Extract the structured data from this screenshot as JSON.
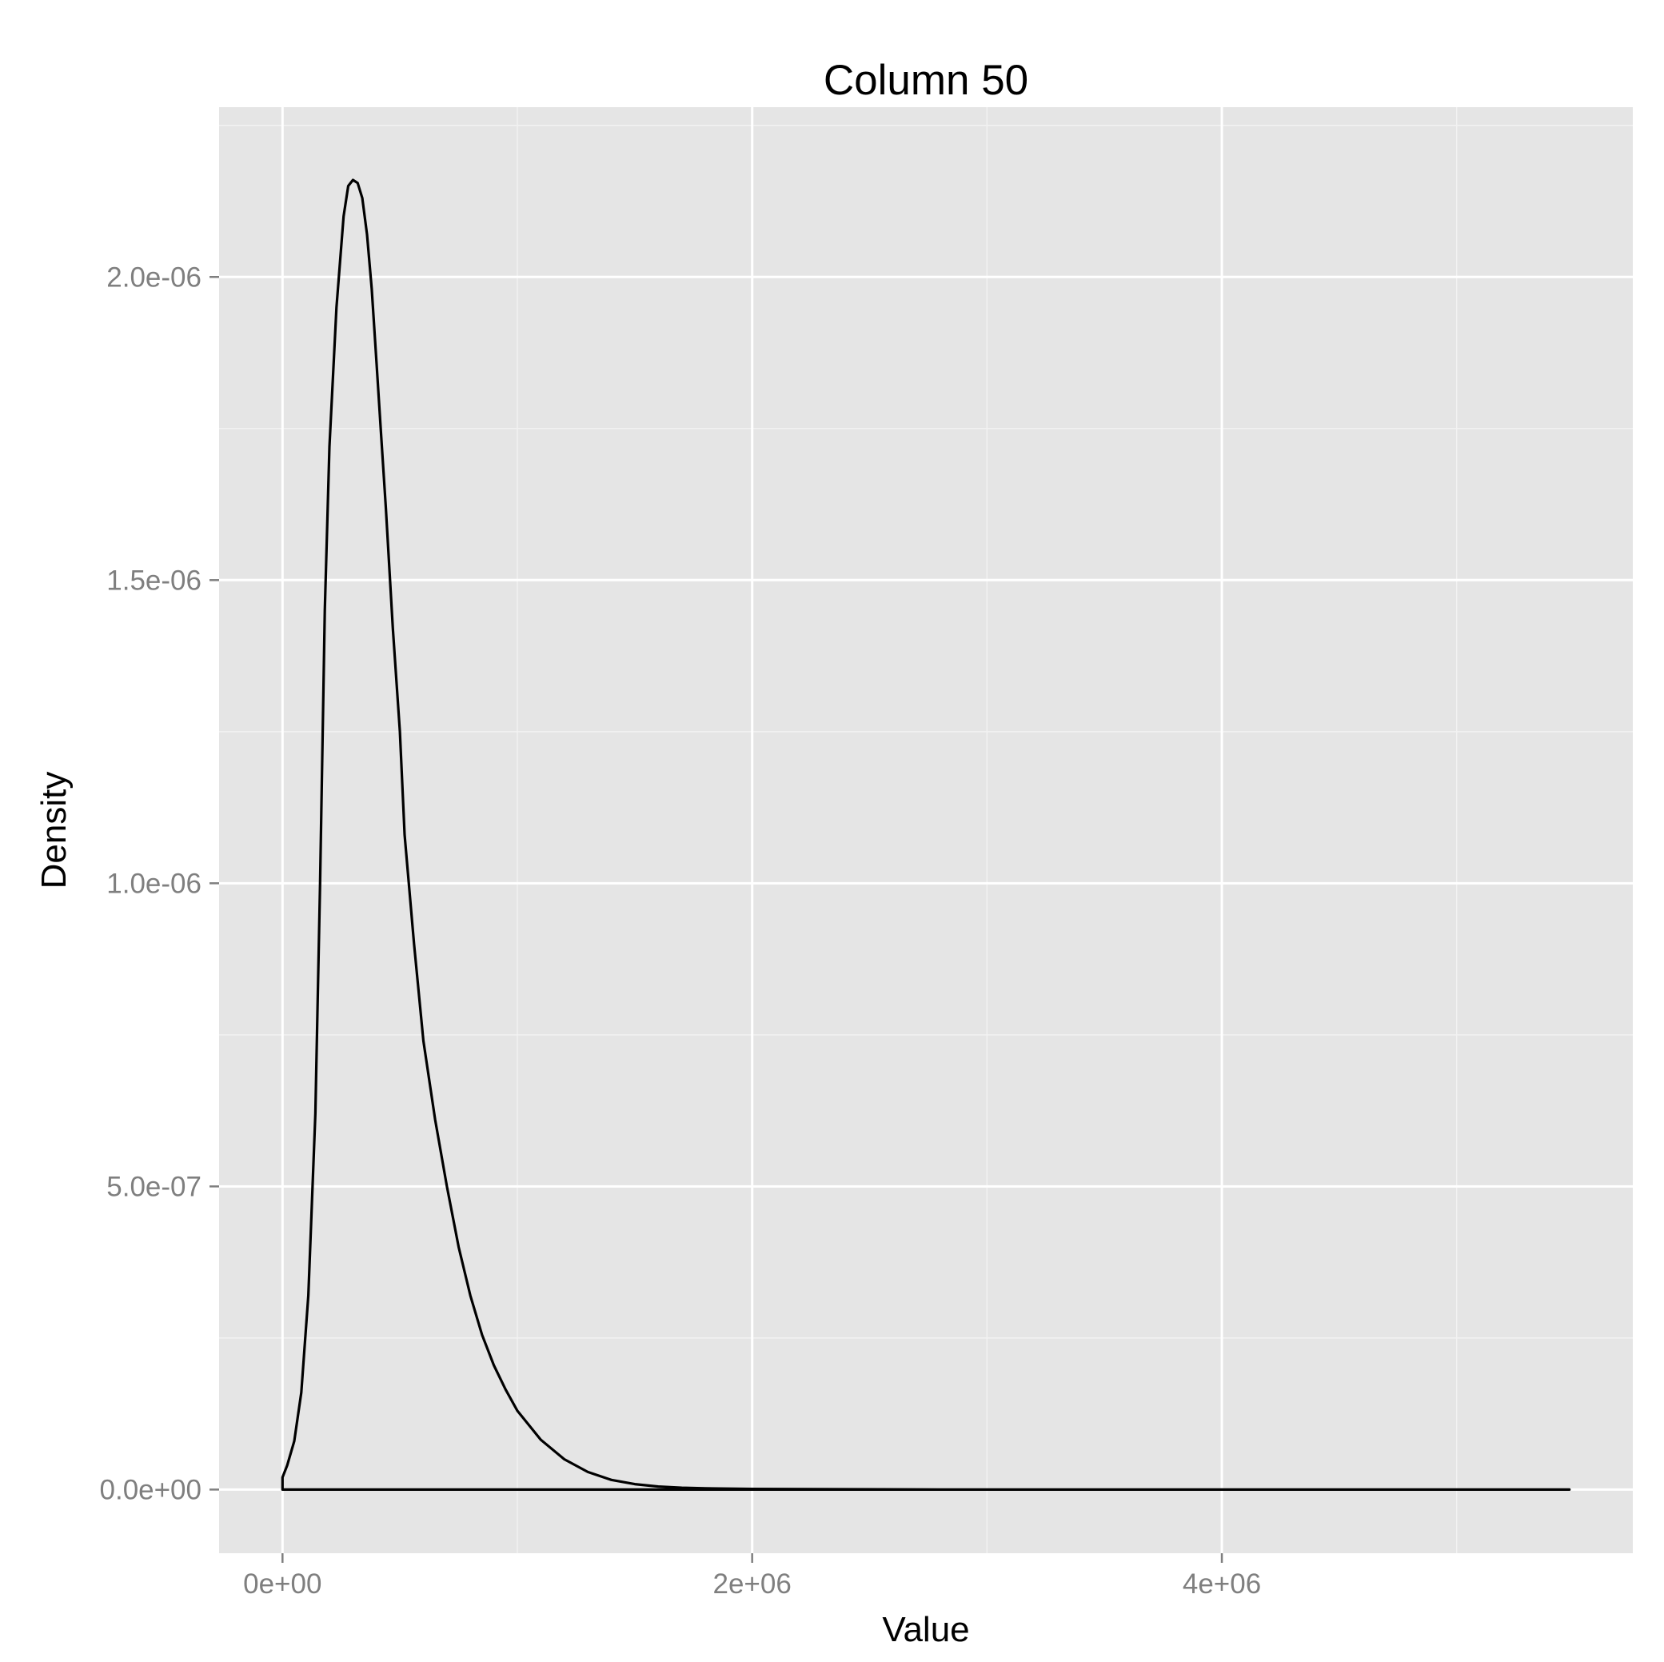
{
  "chart_data": {
    "type": "line",
    "title": "Column 50",
    "xlabel": "Value",
    "ylabel": "Density",
    "xlim": [
      -270000,
      5750000
    ],
    "ylim": [
      -1.05e-07,
      2.28e-06
    ],
    "x_ticks": [
      {
        "value": 0,
        "label": "0e+00"
      },
      {
        "value": 2000000,
        "label": "2e+06"
      },
      {
        "value": 4000000,
        "label": "4e+06"
      }
    ],
    "x_minor_ticks": [
      1000000,
      3000000,
      5000000
    ],
    "y_ticks": [
      {
        "value": 0,
        "label": "0.0e+00"
      },
      {
        "value": 5e-07,
        "label": "5.0e-07"
      },
      {
        "value": 1e-06,
        "label": "1.0e-06"
      },
      {
        "value": 1.5e-06,
        "label": "1.5e-06"
      },
      {
        "value": 2e-06,
        "label": "2.0e-06"
      }
    ],
    "y_minor_ticks": [
      2.5e-07,
      7.5e-07,
      1.25e-06,
      1.75e-06,
      2.25e-06
    ],
    "grid": true,
    "series": [
      {
        "x": [
          0,
          0,
          20000,
          50000,
          80000,
          110000,
          140000,
          160000,
          180000,
          200000,
          230000,
          260000,
          280000,
          300000,
          320000,
          340000,
          360000,
          380000,
          400000,
          420000,
          440000,
          470000,
          500000,
          520000,
          560000,
          600000,
          650000,
          700000,
          750000,
          800000,
          850000,
          900000,
          950000,
          1000000,
          1100000,
          1200000,
          1300000,
          1400000,
          1500000,
          1600000,
          1700000,
          1800000,
          2000000,
          2400000,
          2800000,
          3500000,
          4500000,
          5480000,
          5480000,
          0
        ],
        "y": [
          0,
          2e-08,
          4e-08,
          8e-08,
          1.6e-07,
          3.2e-07,
          6.2e-07,
          1e-06,
          1.45e-06,
          1.72e-06,
          1.95e-06,
          2.1e-06,
          2.15e-06,
          2.16e-06,
          2.155e-06,
          2.13e-06,
          2.07e-06,
          1.98e-06,
          1.86e-06,
          1.74e-06,
          1.62e-06,
          1.42e-06,
          1.25e-06,
          1.08e-06,
          9e-07,
          7.4e-07,
          6.1e-07,
          5e-07,
          4e-07,
          3.2e-07,
          2.55e-07,
          2.05e-07,
          1.65e-07,
          1.3e-07,
          8.2e-08,
          5e-08,
          2.9e-08,
          1.6e-08,
          9e-09,
          5e-09,
          3e-09,
          2e-09,
          1e-09,
          5e-10,
          2e-10,
          0,
          0,
          0,
          0,
          0
        ]
      }
    ]
  }
}
